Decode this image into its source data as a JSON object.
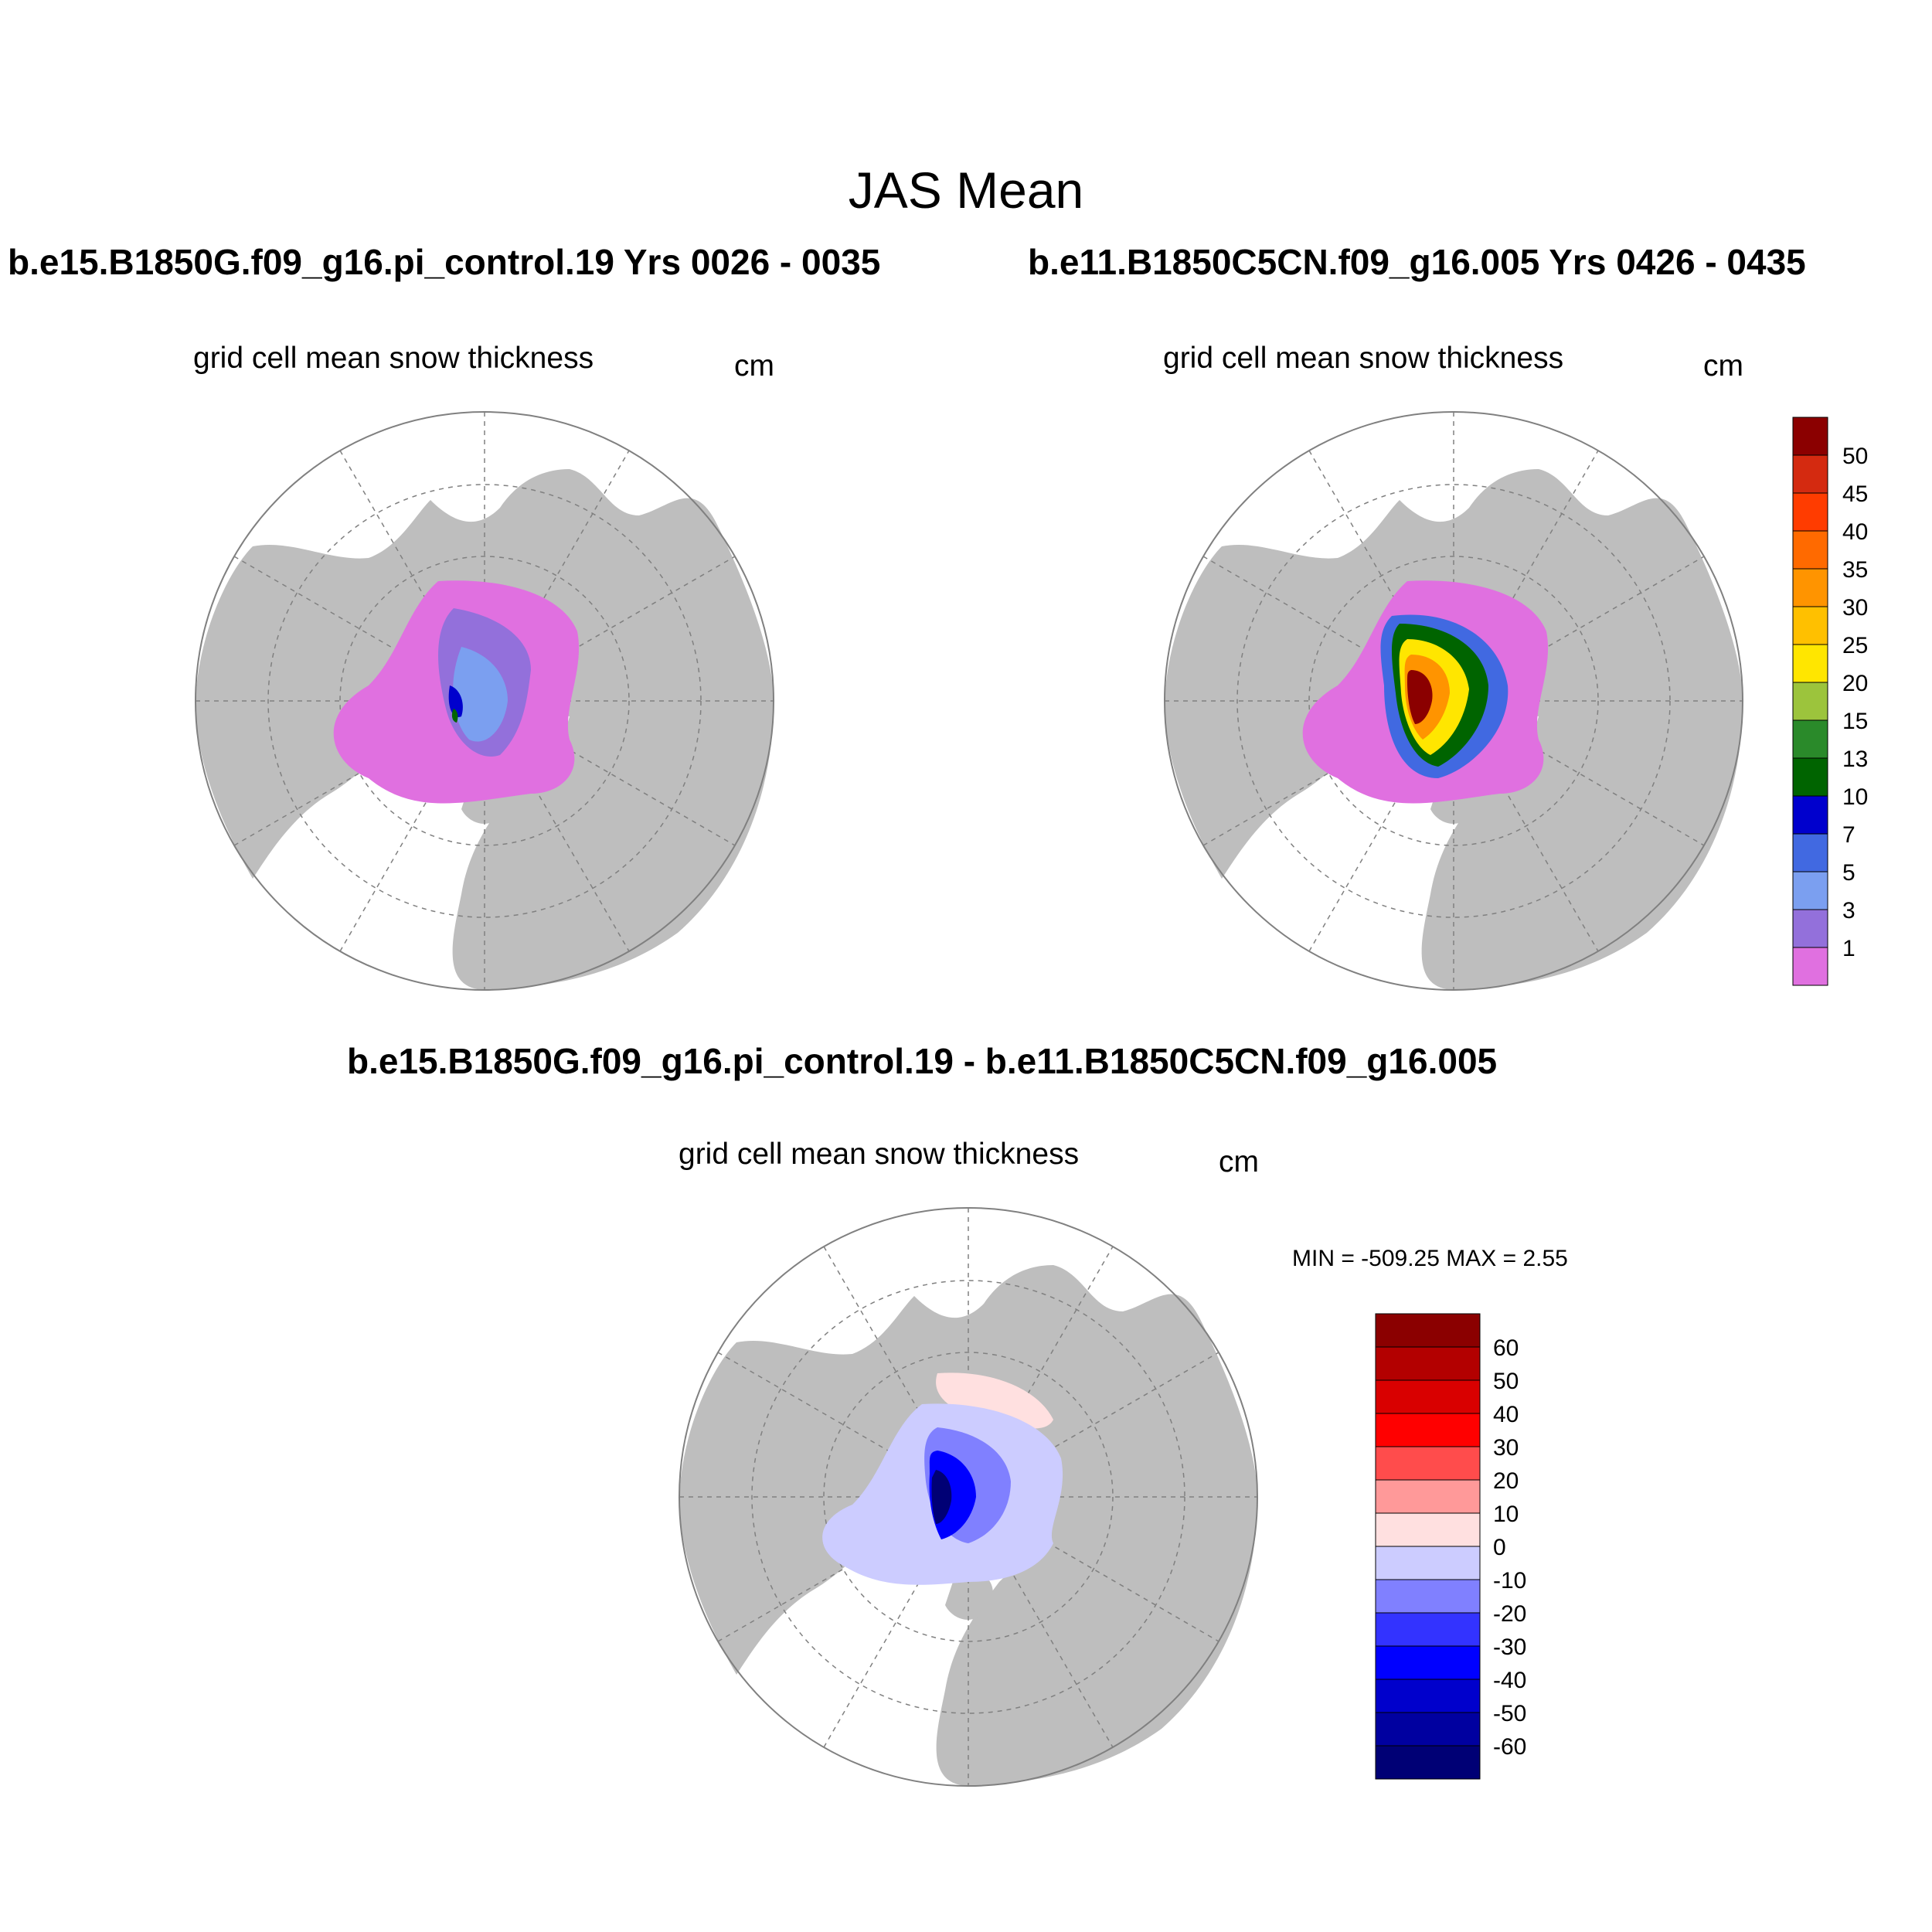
{
  "title": "JAS Mean",
  "panels": {
    "left": {
      "case_title": "b.e15.B1850G.f09_g16.pi_control.19  Yrs 0026 - 0035",
      "variable": "grid cell mean snow thickness",
      "units": "cm"
    },
    "right": {
      "case_title": "b.e11.B1850C5CN.f09_g16.005  Yrs 0426 - 0435",
      "variable": "grid cell mean snow thickness",
      "units": "cm"
    },
    "diff": {
      "case_title": "b.e15.B1850G.f09_g16.pi_control.19 - b.e11.B1850C5CN.f09_g16.005",
      "variable": "grid cell mean snow thickness",
      "units": "cm",
      "stats": "MIN = -509.25 MAX =   2.55"
    }
  },
  "colorbars": {
    "thickness": {
      "levels": [
        "50",
        "45",
        "40",
        "35",
        "30",
        "25",
        "20",
        "15",
        "13",
        "10",
        "7",
        "5",
        "3",
        "1"
      ],
      "colors": [
        "#8b0000",
        "#d42a10",
        "#ff3c00",
        "#ff6a00",
        "#ff9400",
        "#ffc000",
        "#ffe600",
        "#9cc43c",
        "#2a8a2a",
        "#006400",
        "#0000cd",
        "#4169e1",
        "#7b9ff0",
        "#9370db",
        "#e070e0"
      ]
    },
    "difference": {
      "levels": [
        "60",
        "50",
        "40",
        "30",
        "20",
        "10",
        "0",
        "-10",
        "-20",
        "-30",
        "-40",
        "-50",
        "-60"
      ],
      "colors": [
        "#8b0000",
        "#b30000",
        "#d90000",
        "#ff0000",
        "#ff4c4c",
        "#ff9999",
        "#ffe0e0",
        "#ccccff",
        "#8080ff",
        "#3333ff",
        "#0000ff",
        "#0000cc",
        "#0000a0",
        "#000075"
      ]
    }
  },
  "map_colors": {
    "land": "#bebebe",
    "ocean": "#ffffff",
    "grid": "#808080"
  }
}
